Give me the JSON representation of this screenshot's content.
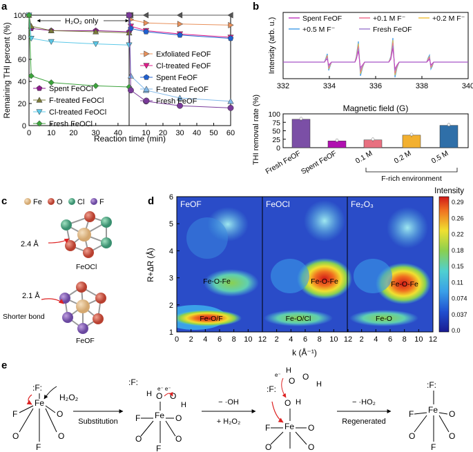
{
  "figure": {
    "panel_a": {
      "letter": "a",
      "ylabel": "Remaining THI percent (%)",
      "xlabel": "Reaction time (min)",
      "annotation": "H₂O₂ only",
      "yticks": [
        "0",
        "20",
        "40",
        "60",
        "80",
        "100"
      ],
      "xticks_left": [
        "0",
        "10",
        "20",
        "30",
        "40"
      ],
      "xticks_right": [
        "0",
        "10",
        "20",
        "30",
        "40",
        "50",
        "60"
      ],
      "legend_left": [
        "Spent FeOCl",
        "F-treated FeOCl",
        "Cl-treated FeOCl",
        "Fresh FeOCl"
      ],
      "legend_right": [
        "Exfoliated FeOF",
        "Cl-treated FeOF",
        "Spent FeOF",
        "F-treated FeOF",
        "Fresh FeOF"
      ]
    },
    "panel_b": {
      "letter": "b",
      "epr_ylabel": "Intensity (arb. u.)",
      "epr_xlabel": "Magnetic field (G)",
      "epr_xticks": [
        "332",
        "334",
        "336",
        "338",
        "340"
      ],
      "epr_legend": [
        "Spent FeOF",
        "+0.1 M F⁻",
        "+0.2 M F⁻",
        "+0.5 M F⁻",
        "Fresh FeOF"
      ],
      "bar_ylabel": "THI removal rate (%)",
      "bar_yticks": [
        "0",
        "25",
        "50",
        "75",
        "100"
      ],
      "bar_categories": [
        "Fresh FeOF",
        "Spent FeOF",
        "0.1 M",
        "0.2 M",
        "0.5 M"
      ],
      "bar_group_label": "F-rich environment"
    },
    "panel_c": {
      "letter": "c",
      "legend": [
        "Fe",
        "O",
        "Cl",
        "F"
      ],
      "top_label": "FeOCl",
      "top_bond": "2.4 Å",
      "bottom_label": "FeOF",
      "bottom_bond": "2.1 Å",
      "bottom_note": "Shorter bond"
    },
    "panel_d": {
      "letter": "d",
      "ylabel": "R+ΔR (Å)",
      "xlabel": "k (Å⁻¹)",
      "yticks": [
        "1",
        "2",
        "3",
        "4",
        "5",
        "6"
      ],
      "xticks": [
        "0",
        "2",
        "4",
        "6",
        "8",
        "10",
        "12"
      ],
      "maps": [
        {
          "title": "FeOF",
          "labels": [
            "Fe-O-Fe",
            "Fe-O/F"
          ]
        },
        {
          "title": "FeOCl",
          "labels": [
            "Fe-O-Fe",
            "Fe-O/Cl"
          ]
        },
        {
          "title": "Fe₂O₃",
          "labels": [
            "Fe-O-Fe",
            "Fe-O"
          ]
        }
      ],
      "colorbar_title": "Intensity",
      "colorbar_ticks": [
        "0.29",
        "0.26",
        "0.22",
        "0.18",
        "0.15",
        "0.11",
        "0.074",
        "0.037",
        "0.0"
      ]
    },
    "panel_e": {
      "letter": "e",
      "step1": "Substitution",
      "step2_top": "− ·OH",
      "step2_bottom": "+ H₂O₂",
      "step3_top": "− ·HO₂",
      "step3_bottom": "Regenerated",
      "reagent": "H₂O₂"
    },
    "chart_data": [
      {
        "type": "line",
        "panel": "a-left",
        "xlabel": "Reaction time (min)",
        "ylabel": "Remaining THI percent (%)",
        "xlim": [
          0,
          45
        ],
        "ylim": [
          0,
          100
        ],
        "x": [
          0,
          1,
          10,
          30,
          45
        ],
        "series": [
          {
            "name": "Spent FeOCl",
            "color": "#8B1A8B",
            "values": [
              100,
              88,
              86,
              86,
              85
            ]
          },
          {
            "name": "F-treated FeOCl",
            "color": "#7A7A3A",
            "values": [
              100,
              90,
              86,
              85,
              84
            ]
          },
          {
            "name": "Cl-treated FeOCl",
            "color": "#5BC8E8",
            "values": [
              100,
              79,
              76,
              74,
              73
            ]
          },
          {
            "name": "Fresh FeOCl",
            "color": "#3CA33C",
            "values": [
              100,
              45,
              39,
              36,
              35
            ]
          }
        ]
      },
      {
        "type": "line",
        "panel": "a-right",
        "xlabel": "Reaction time (min)",
        "ylabel": "Remaining THI percent (%)",
        "xlim": [
          0,
          60
        ],
        "ylim": [
          0,
          100
        ],
        "x": [
          0,
          1,
          10,
          30,
          60
        ],
        "series": [
          {
            "name": "H₂O₂ only",
            "color": "#555555",
            "values": [
              100,
              100,
              100,
              100,
              100
            ]
          },
          {
            "name": "Exfoliated FeOF",
            "color": "#E8905A",
            "values": [
              100,
              96,
              93,
              92,
              91
            ]
          },
          {
            "name": "Cl-treated FeOF",
            "color": "#E01A8A",
            "values": [
              100,
              90,
              86,
              83,
              80
            ]
          },
          {
            "name": "Spent FeOF",
            "color": "#2060D0",
            "values": [
              100,
              88,
              85,
              82,
              79
            ]
          },
          {
            "name": "F-treated FeOF",
            "color": "#80B8E8",
            "values": [
              100,
              45,
              32,
              25,
              22
            ]
          },
          {
            "name": "Fresh FeOF",
            "color": "#7A3A9A",
            "values": [
              100,
              32,
              22,
              18,
              16
            ]
          }
        ]
      },
      {
        "type": "bar",
        "panel": "b-bottom",
        "ylabel": "THI removal rate (%)",
        "ylim": [
          0,
          100
        ],
        "categories": [
          "Fresh FeOF",
          "Spent FeOF",
          "0.1 M",
          "0.2 M",
          "0.5 M"
        ],
        "values": [
          84,
          20,
          23,
          37,
          66
        ],
        "colors": [
          "#7B4FA6",
          "#B010B0",
          "#E87080",
          "#F2B030",
          "#2F6FA8"
        ]
      }
    ]
  }
}
